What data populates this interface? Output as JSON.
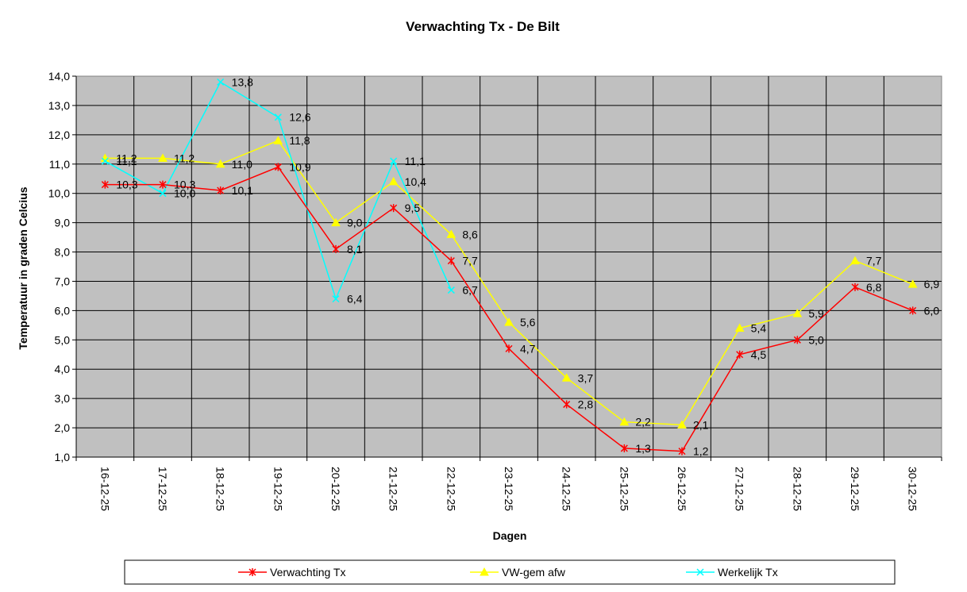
{
  "chart_data": {
    "type": "line",
    "title": "Verwachting Tx - De Bilt",
    "xlabel": "Dagen",
    "ylabel": "Temperatuur in graden Celcius",
    "ylim": [
      1.0,
      14.0
    ],
    "ytick_step": 1.0,
    "grid": true,
    "legend_position": "bottom",
    "plot_background": "#c0c0c0",
    "categories": [
      "16-12-25",
      "17-12-25",
      "18-12-25",
      "19-12-25",
      "20-12-25",
      "21-12-25",
      "22-12-25",
      "23-12-25",
      "24-12-25",
      "25-12-25",
      "26-12-25",
      "27-12-25",
      "28-12-25",
      "29-12-25",
      "30-12-25"
    ],
    "series": [
      {
        "name": "Verwachting Tx",
        "color": "#ff0000",
        "marker": "asterisk",
        "values": [
          10.3,
          10.3,
          10.1,
          10.9,
          8.1,
          9.5,
          7.7,
          4.7,
          2.8,
          1.3,
          1.2,
          4.5,
          5.0,
          6.8,
          6.0
        ]
      },
      {
        "name": "VW-gem afw",
        "color": "#ffff00",
        "marker": "triangle",
        "values": [
          11.2,
          11.2,
          11.0,
          11.8,
          9.0,
          10.4,
          8.6,
          5.6,
          3.7,
          2.2,
          2.1,
          5.4,
          5.9,
          7.7,
          6.9
        ]
      },
      {
        "name": "Werkelijk Tx",
        "color": "#00ffff",
        "marker": "x",
        "values": [
          11.1,
          10.0,
          13.8,
          12.6,
          6.4,
          11.1,
          6.7,
          null,
          null,
          null,
          null,
          null,
          null,
          null,
          null
        ]
      }
    ],
    "data_labels": [
      {
        "series": 0,
        "text": [
          "10,3",
          "10,3",
          "10,1",
          "10,9",
          "8,1",
          "9,5",
          "7,7",
          "4,7",
          "2,8",
          "1,3",
          "1,2",
          "4,5",
          "5,0",
          "6,8",
          "6,0"
        ]
      },
      {
        "series": 1,
        "text": [
          "11,2",
          "11,2",
          "11,0",
          "11,8",
          "9,0",
          "10,4",
          "8,6",
          "5,6",
          "3,7",
          "2,2",
          "2,1",
          "5,4",
          "5,9",
          "7,7",
          "6,9"
        ]
      },
      {
        "series": 2,
        "text": [
          "11,1",
          "10,0",
          "13,8",
          "12,6",
          "6,4",
          "11,1",
          "6,7",
          "",
          "",
          "",
          "",
          "",
          "",
          "",
          ""
        ]
      }
    ],
    "ytick_labels": [
      "1,0",
      "2,0",
      "3,0",
      "4,0",
      "5,0",
      "6,0",
      "7,0",
      "8,0",
      "9,0",
      "10,0",
      "11,0",
      "12,0",
      "13,0",
      "14,0"
    ]
  }
}
